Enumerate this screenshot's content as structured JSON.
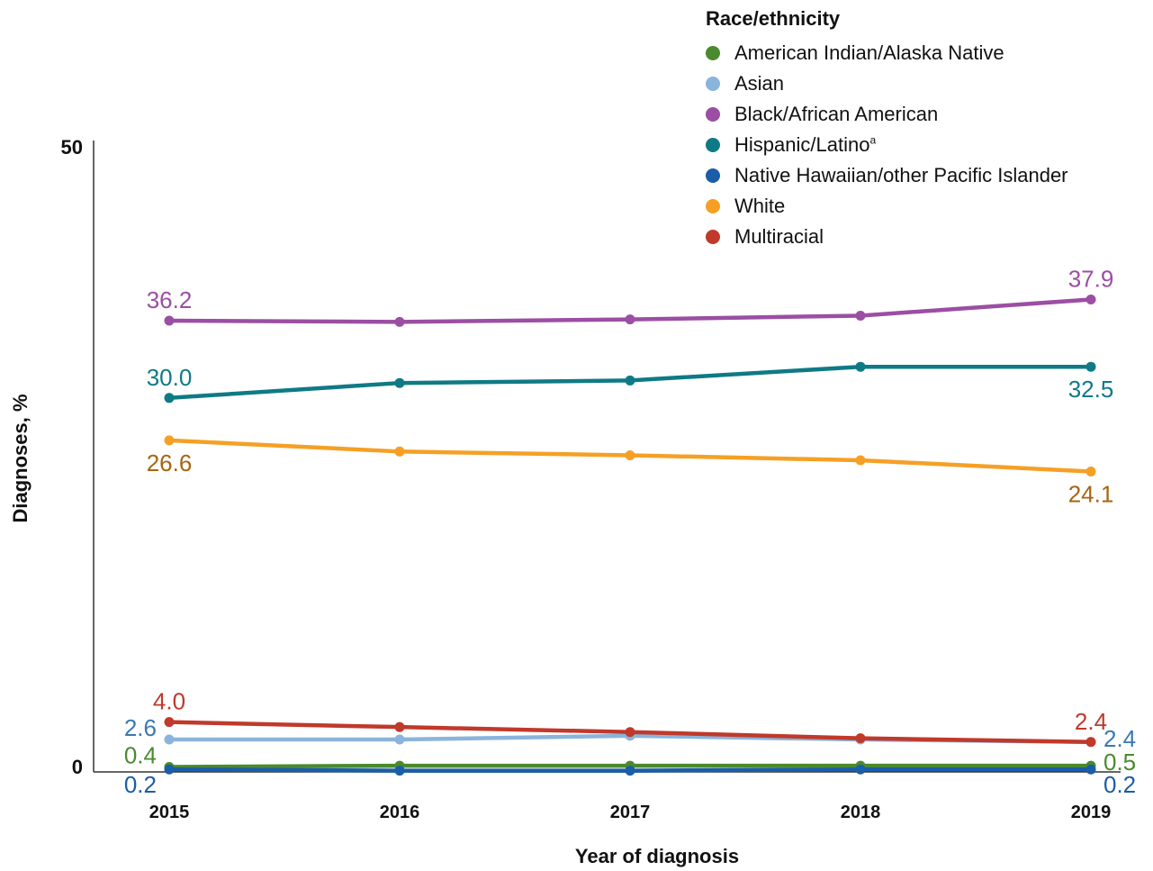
{
  "chart_data": {
    "type": "line",
    "xlabel": "Year of diagnosis",
    "ylabel": "Diagnoses, %",
    "ylim": [
      0,
      50
    ],
    "y_ticks": [
      "0",
      "50"
    ],
    "grid": false,
    "legend_position": "top-right",
    "legend_title": "Race/ethnicity",
    "x": [
      "2015",
      "2016",
      "2017",
      "2018",
      "2019"
    ],
    "series": [
      {
        "name": "American Indian/Alaska Native",
        "color": "#4a8a2e",
        "label_color": "#4a8a2e",
        "values": [
          0.4,
          0.5,
          0.5,
          0.5,
          0.5
        ],
        "labels": [
          {
            "index": 0,
            "text": "0.4",
            "pos": "left"
          },
          {
            "index": 4,
            "text": "0.5",
            "pos": "right"
          }
        ]
      },
      {
        "name": "Asian",
        "color": "#8ab4dc",
        "label_color": "#3a78b5",
        "values": [
          2.6,
          2.6,
          2.9,
          2.6,
          2.4
        ],
        "labels": [
          {
            "index": 0,
            "text": "2.6",
            "pos": "left"
          },
          {
            "index": 4,
            "text": "2.4",
            "pos": "right"
          }
        ]
      },
      {
        "name": "Black/African American",
        "color": "#9b4ea3",
        "label_color": "#9b4ea3",
        "values": [
          36.2,
          36.1,
          36.3,
          36.6,
          37.9
        ],
        "labels": [
          {
            "index": 0,
            "text": "36.2",
            "pos": "above"
          },
          {
            "index": 4,
            "text": "37.9",
            "pos": "above"
          }
        ]
      },
      {
        "name": "Hispanic/Latino",
        "name_sup": "a",
        "color": "#0f7a85",
        "label_color": "#0f7a85",
        "values": [
          30.0,
          31.2,
          31.4,
          32.5,
          32.5
        ],
        "labels": [
          {
            "index": 0,
            "text": "30.0",
            "pos": "above"
          },
          {
            "index": 4,
            "text": "32.5",
            "pos": "below"
          }
        ]
      },
      {
        "name": "Native Hawaiian/other Pacific Islander",
        "color": "#1a5da8",
        "label_color": "#1a5da8",
        "values": [
          0.2,
          0.1,
          0.1,
          0.2,
          0.2
        ],
        "labels": [
          {
            "index": 0,
            "text": "0.2",
            "pos": "below-left"
          },
          {
            "index": 4,
            "text": "0.2",
            "pos": "below-right"
          }
        ]
      },
      {
        "name": "White",
        "color": "#f5a025",
        "label_color": "#a86410",
        "values": [
          26.6,
          25.7,
          25.4,
          25.0,
          24.1
        ],
        "labels": [
          {
            "index": 0,
            "text": "26.6",
            "pos": "below"
          },
          {
            "index": 4,
            "text": "24.1",
            "pos": "below"
          }
        ]
      },
      {
        "name": "Multiracial",
        "color": "#c0392b",
        "label_color": "#c0392b",
        "values": [
          4.0,
          3.6,
          3.2,
          2.7,
          2.4
        ],
        "labels": [
          {
            "index": 0,
            "text": "4.0",
            "pos": "above"
          },
          {
            "index": 4,
            "text": "2.4",
            "pos": "above"
          }
        ]
      }
    ]
  }
}
